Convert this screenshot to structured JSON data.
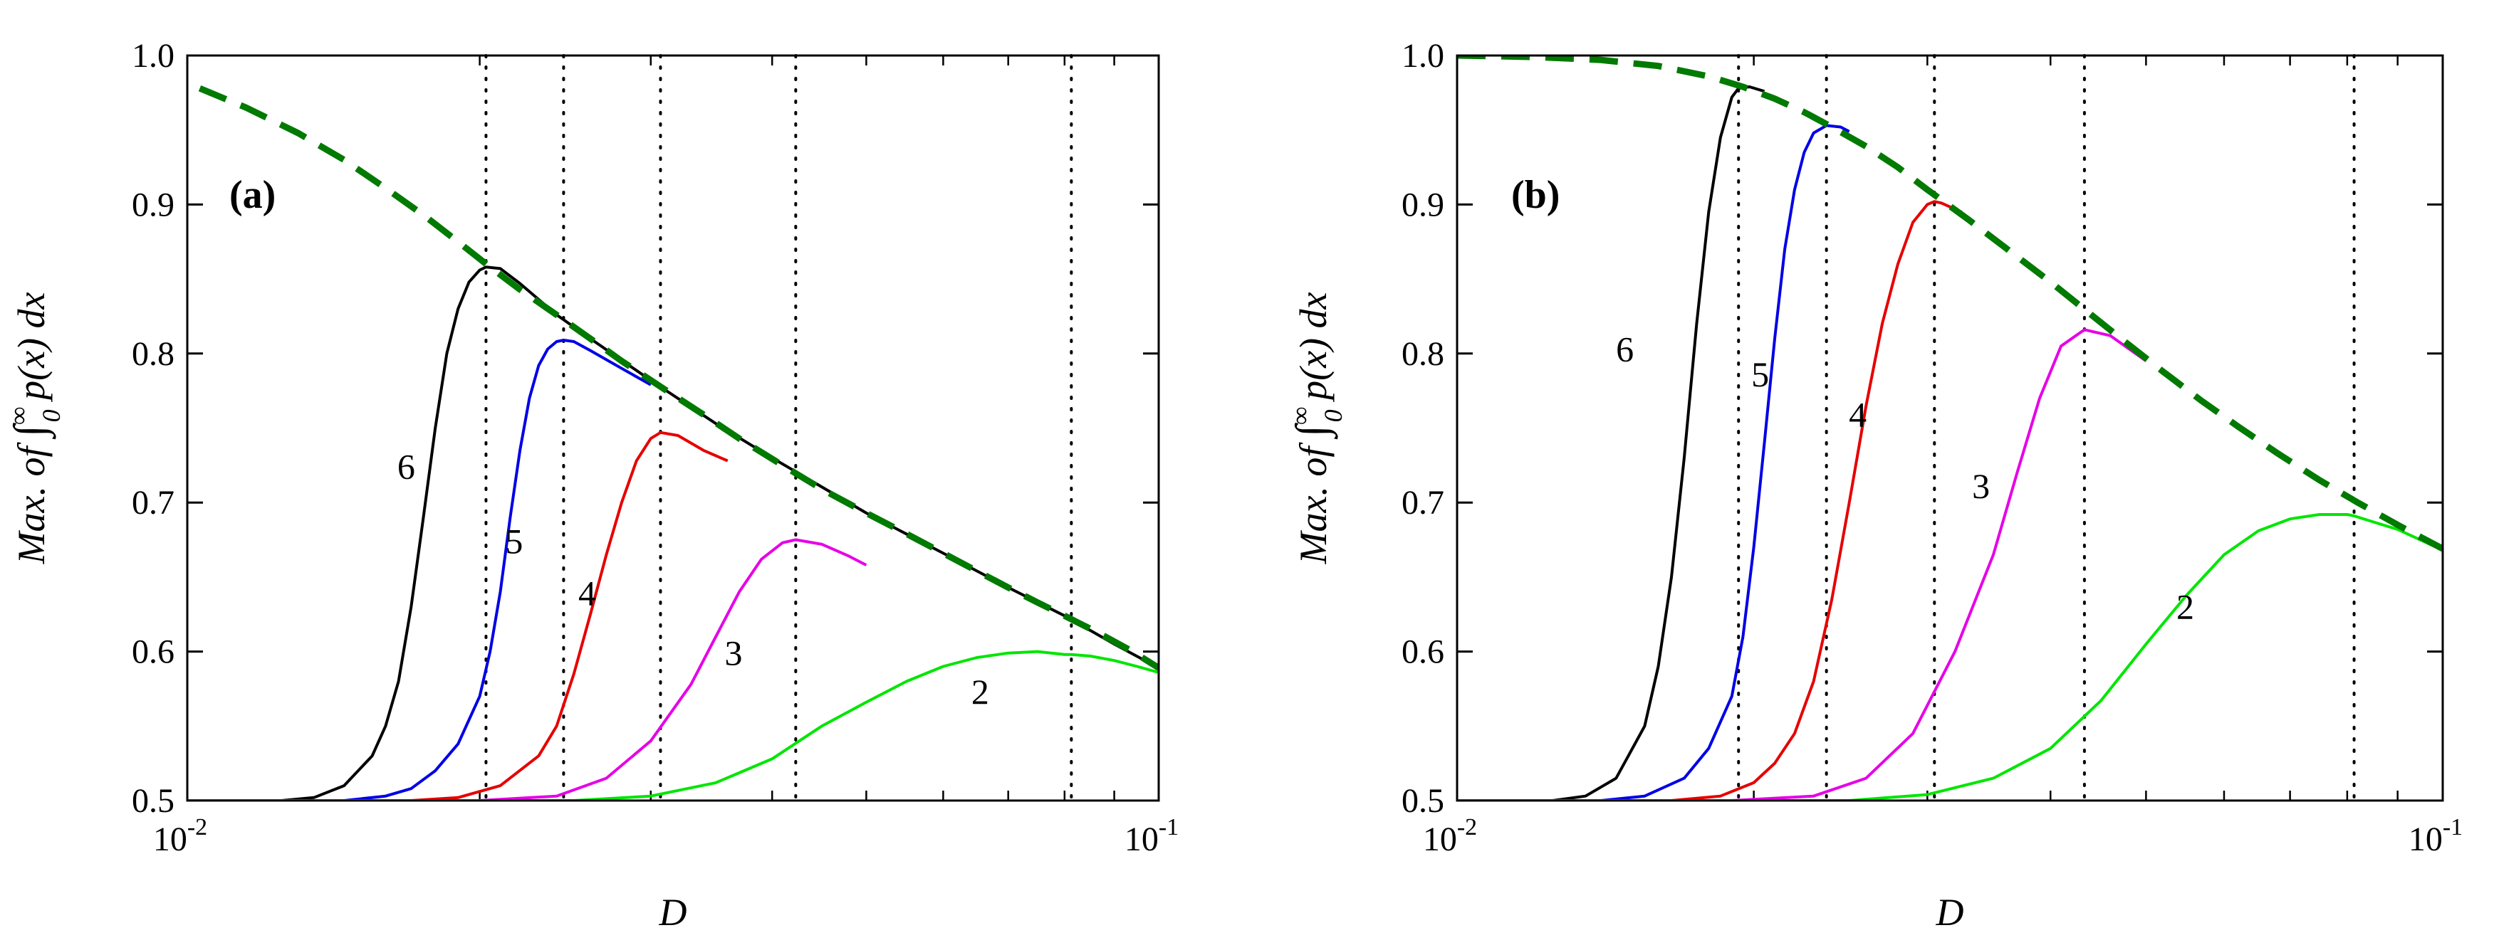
{
  "chart_data": [
    {
      "type": "line",
      "panel_label": "(a)",
      "xscale": "log",
      "xlim": [
        0.01,
        0.1
      ],
      "ylim": [
        0.5,
        1.0
      ],
      "xlabel": "D",
      "ylabel_parts": {
        "prefix": "Max.  of  ",
        "integral": "∫",
        "sup": "∞",
        "sub": "0",
        "suffix": " p(x) dx"
      },
      "xticks": [
        {
          "value": 0.01,
          "base": "10",
          "exp": "-2"
        },
        {
          "value": 0.1,
          "base": "10",
          "exp": "-1"
        }
      ],
      "yticks": [
        {
          "value": 0.5,
          "label": "0.5"
        },
        {
          "value": 0.6,
          "label": "0.6"
        },
        {
          "value": 0.7,
          "label": "0.7"
        },
        {
          "value": 0.8,
          "label": "0.8"
        },
        {
          "value": 0.9,
          "label": "0.9"
        },
        {
          "value": 1.0,
          "label": "1.0"
        }
      ],
      "envelope": {
        "name": "envelope",
        "color": "#007a00",
        "x": [
          0.0103,
          0.0115,
          0.013,
          0.0145,
          0.016,
          0.0175,
          0.019,
          0.0205,
          0.022,
          0.024,
          0.026,
          0.028,
          0.031,
          0.034,
          0.037,
          0.041,
          0.045,
          0.05,
          0.055,
          0.06,
          0.065,
          0.07,
          0.075,
          0.08,
          0.087,
          0.094,
          0.1
        ],
        "y": [
          0.978,
          0.965,
          0.948,
          0.93,
          0.911,
          0.893,
          0.875,
          0.858,
          0.843,
          0.826,
          0.81,
          0.795,
          0.776,
          0.759,
          0.743,
          0.725,
          0.709,
          0.693,
          0.679,
          0.666,
          0.654,
          0.643,
          0.633,
          0.624,
          0.612,
          0.6,
          0.589
        ]
      },
      "vlines": [
        0.0203,
        0.0244,
        0.0307,
        0.0423,
        0.0813
      ],
      "series": [
        {
          "name": "6",
          "color": "#000000",
          "x": [
            0.01,
            0.0125,
            0.0135,
            0.0145,
            0.0155,
            0.016,
            0.0165,
            0.017,
            0.0175,
            0.018,
            0.0185,
            0.019,
            0.0195,
            0.02,
            0.0203,
            0.021,
            0.022,
            0.024,
            0.026,
            0.03,
            0.035,
            0.04,
            0.05,
            0.06,
            0.07,
            0.08,
            0.09,
            0.1
          ],
          "y": [
            0.5,
            0.5,
            0.502,
            0.51,
            0.53,
            0.55,
            0.58,
            0.63,
            0.69,
            0.75,
            0.8,
            0.83,
            0.848,
            0.856,
            0.858,
            0.857,
            0.847,
            0.826,
            0.81,
            0.782,
            0.753,
            0.73,
            0.693,
            0.666,
            0.643,
            0.624,
            0.605,
            0.589
          ],
          "label_pos": [
            0.0168,
            0.716
          ]
        },
        {
          "name": "5",
          "color": "#0000e6",
          "x": [
            0.01,
            0.0145,
            0.016,
            0.017,
            0.018,
            0.019,
            0.02,
            0.0205,
            0.021,
            0.0215,
            0.022,
            0.0225,
            0.023,
            0.0235,
            0.024,
            0.0244,
            0.025,
            0.026,
            0.028,
            0.03
          ],
          "y": [
            0.5,
            0.5,
            0.503,
            0.508,
            0.52,
            0.538,
            0.57,
            0.6,
            0.64,
            0.69,
            0.735,
            0.77,
            0.792,
            0.803,
            0.808,
            0.809,
            0.808,
            0.802,
            0.79,
            0.779
          ],
          "label_pos": [
            0.0217,
            0.666
          ]
        },
        {
          "name": "4",
          "color": "#e60000",
          "x": [
            0.01,
            0.017,
            0.019,
            0.021,
            0.023,
            0.024,
            0.025,
            0.026,
            0.027,
            0.028,
            0.029,
            0.03,
            0.0307,
            0.032,
            0.034,
            0.036
          ],
          "y": [
            0.5,
            0.5,
            0.502,
            0.51,
            0.53,
            0.55,
            0.585,
            0.625,
            0.665,
            0.7,
            0.728,
            0.743,
            0.747,
            0.745,
            0.735,
            0.728
          ],
          "label_pos": [
            0.0258,
            0.631
          ]
        },
        {
          "name": "3",
          "color": "#e600e6",
          "x": [
            0.01,
            0.02,
            0.024,
            0.027,
            0.03,
            0.033,
            0.035,
            0.037,
            0.039,
            0.041,
            0.0423,
            0.045,
            0.048,
            0.05
          ],
          "y": [
            0.5,
            0.5,
            0.503,
            0.515,
            0.54,
            0.578,
            0.61,
            0.64,
            0.662,
            0.673,
            0.675,
            0.672,
            0.664,
            0.658
          ],
          "label_pos": [
            0.0365,
            0.591
          ]
        },
        {
          "name": "2",
          "color": "#00e600",
          "x": [
            0.01,
            0.025,
            0.03,
            0.035,
            0.04,
            0.045,
            0.05,
            0.055,
            0.06,
            0.065,
            0.07,
            0.075,
            0.08,
            0.0813,
            0.085,
            0.09,
            0.095,
            0.1
          ],
          "y": [
            0.5,
            0.5,
            0.503,
            0.512,
            0.528,
            0.55,
            0.566,
            0.58,
            0.59,
            0.596,
            0.599,
            0.6,
            0.598,
            0.598,
            0.597,
            0.594,
            0.59,
            0.586
          ],
          "label_pos": [
            0.0655,
            0.565
          ]
        }
      ]
    },
    {
      "type": "line",
      "panel_label": "(b)",
      "xscale": "log",
      "xlim": [
        0.01,
        0.1
      ],
      "ylim": [
        0.5,
        1.0
      ],
      "xlabel": "D",
      "ylabel_parts": {
        "prefix": "Max.  of  ",
        "integral": "∫",
        "sup": "∞",
        "sub": "0",
        "suffix": " p(x) dx"
      },
      "xticks": [
        {
          "value": 0.01,
          "base": "10",
          "exp": "-2"
        },
        {
          "value": 0.1,
          "base": "10",
          "exp": "-1"
        }
      ],
      "yticks": [
        {
          "value": 0.5,
          "label": "0.5"
        },
        {
          "value": 0.6,
          "label": "0.6"
        },
        {
          "value": 0.7,
          "label": "0.7"
        },
        {
          "value": 0.8,
          "label": "0.8"
        },
        {
          "value": 0.9,
          "label": "0.9"
        },
        {
          "value": 1.0,
          "label": "1.0"
        }
      ],
      "envelope": {
        "name": "envelope",
        "color": "#007a00",
        "x": [
          0.01,
          0.012,
          0.014,
          0.016,
          0.018,
          0.0195,
          0.021,
          0.0225,
          0.024,
          0.026,
          0.028,
          0.03,
          0.033,
          0.036,
          0.04,
          0.044,
          0.048,
          0.052,
          0.057,
          0.062,
          0.068,
          0.075,
          0.082,
          0.09,
          0.1
        ],
        "y": [
          1.0,
          0.999,
          0.997,
          0.993,
          0.986,
          0.979,
          0.971,
          0.962,
          0.952,
          0.939,
          0.925,
          0.91,
          0.89,
          0.871,
          0.848,
          0.826,
          0.806,
          0.788,
          0.768,
          0.751,
          0.733,
          0.715,
          0.7,
          0.685,
          0.669
        ]
      },
      "vlines": [
        0.0193,
        0.0237,
        0.0305,
        0.0433,
        0.0813
      ],
      "series": [
        {
          "name": "6",
          "color": "#000000",
          "x": [
            0.01,
            0.0125,
            0.0135,
            0.0145,
            0.0155,
            0.016,
            0.0165,
            0.017,
            0.0175,
            0.018,
            0.0185,
            0.019,
            0.0193,
            0.0198,
            0.0205
          ],
          "y": [
            0.5,
            0.5,
            0.503,
            0.515,
            0.55,
            0.59,
            0.65,
            0.73,
            0.82,
            0.895,
            0.945,
            0.972,
            0.978,
            0.979,
            0.976
          ],
          "label_pos": [
            0.0148,
            0.795
          ]
        },
        {
          "name": "5",
          "color": "#0000e6",
          "x": [
            0.01,
            0.014,
            0.0155,
            0.017,
            0.018,
            0.019,
            0.0195,
            0.02,
            0.0205,
            0.021,
            0.0215,
            0.022,
            0.0225,
            0.023,
            0.0237,
            0.0245,
            0.025
          ],
          "y": [
            0.5,
            0.5,
            0.503,
            0.515,
            0.535,
            0.57,
            0.61,
            0.67,
            0.74,
            0.81,
            0.87,
            0.91,
            0.935,
            0.948,
            0.953,
            0.952,
            0.949
          ],
          "label_pos": [
            0.0203,
            0.778
          ]
        },
        {
          "name": "4",
          "color": "#e60000",
          "x": [
            0.01,
            0.0165,
            0.0185,
            0.02,
            0.021,
            0.022,
            0.023,
            0.024,
            0.025,
            0.026,
            0.027,
            0.028,
            0.029,
            0.03,
            0.0305,
            0.031,
            0.0325
          ],
          "y": [
            0.5,
            0.5,
            0.503,
            0.512,
            0.525,
            0.545,
            0.58,
            0.635,
            0.7,
            0.765,
            0.82,
            0.86,
            0.888,
            0.9,
            0.902,
            0.901,
            0.895
          ],
          "label_pos": [
            0.0255,
            0.751
          ]
        },
        {
          "name": "3",
          "color": "#e600e6",
          "x": [
            0.01,
            0.019,
            0.023,
            0.026,
            0.029,
            0.032,
            0.035,
            0.037,
            0.039,
            0.041,
            0.0433,
            0.046,
            0.05
          ],
          "y": [
            0.5,
            0.5,
            0.503,
            0.515,
            0.545,
            0.6,
            0.665,
            0.72,
            0.77,
            0.805,
            0.816,
            0.812,
            0.795
          ],
          "label_pos": [
            0.034,
            0.703
          ]
        },
        {
          "name": "2",
          "color": "#00e600",
          "x": [
            0.01,
            0.025,
            0.03,
            0.035,
            0.04,
            0.045,
            0.05,
            0.055,
            0.06,
            0.065,
            0.07,
            0.075,
            0.08,
            0.0813,
            0.085,
            0.09,
            0.1
          ],
          "y": [
            0.5,
            0.5,
            0.504,
            0.515,
            0.535,
            0.567,
            0.605,
            0.638,
            0.665,
            0.681,
            0.689,
            0.692,
            0.692,
            0.691,
            0.687,
            0.682,
            0.668
          ],
          "label_pos": [
            0.0548,
            0.622
          ]
        }
      ]
    }
  ]
}
